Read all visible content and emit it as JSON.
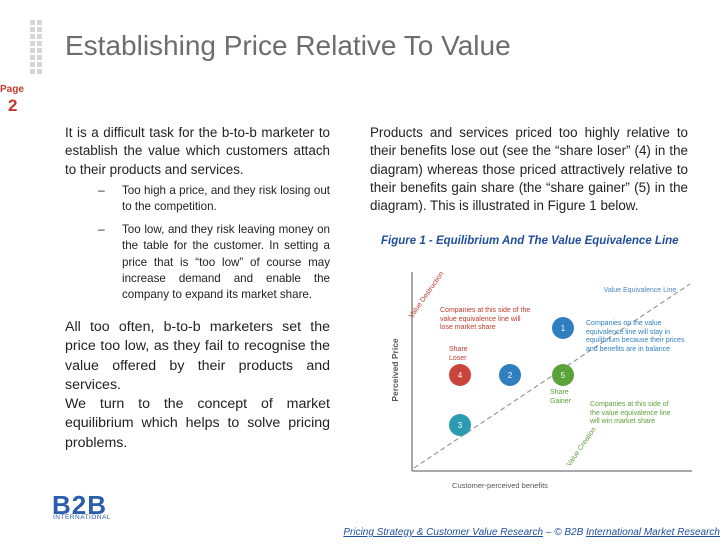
{
  "header": {
    "title": "Establishing Price Relative To Value",
    "page_label": "Page",
    "page_number": "2"
  },
  "left_column": {
    "intro": "It is a difficult task for the b-to-b marketer to establish the value which customers attach to their products and services.",
    "bullets": [
      {
        "marker": "–",
        "text": "Too high a price, and they risk losing out to the competition."
      },
      {
        "marker": "–",
        "text": "Too low, and they risk leaving money on the table for the customer. In setting a price that is “too low” of course may increase demand and enable the company to expand its market share."
      }
    ],
    "paragraphs": [
      "All too often, b-to-b marketers set the price too low, as they fail to recognise the value offered by their products and services.",
      "We turn to the concept of market equilibrium which helps to solve pricing problems."
    ]
  },
  "right_column": {
    "paragraph": "Products and services priced too highly relative to their benefits lose out (see the “share loser” (4) in the diagram) whereas those priced attractively relative to their benefits gain share (the “share gainer” (5) in the diagram). This is illustrated in Figure 1 below."
  },
  "figure": {
    "caption": "Figure 1 - Equilibrium And The Value Equivalence Line",
    "y_axis_label": "Perceived Price",
    "x_axis_label": "Customer-perceived benefits",
    "line_label": "Value Equivalence Line",
    "destruction_label": "Value Destruction",
    "creation_label": "Value Creation",
    "lose_note": "Companies at this side of the value equivalence line will lose market share",
    "stay_note": "Companies on the value equivalence line will stay in equilibrium because their prices and benefits are in balance",
    "win_note": "Companies at this side of the value equivalence line will win market share",
    "loser_label": "Share Loser",
    "gainer_label": "Share Gainer",
    "nodes": [
      {
        "label": "1"
      },
      {
        "label": "2"
      },
      {
        "label": "3"
      },
      {
        "label": "4"
      },
      {
        "label": "5"
      }
    ]
  },
  "footer": {
    "source_link": "Pricing Strategy & Customer Value Research",
    "separator": " – © B2B ",
    "company_link": "International Market Research"
  },
  "logo": {
    "mark": "B2B",
    "subtitle": "INTERNATIONAL"
  }
}
